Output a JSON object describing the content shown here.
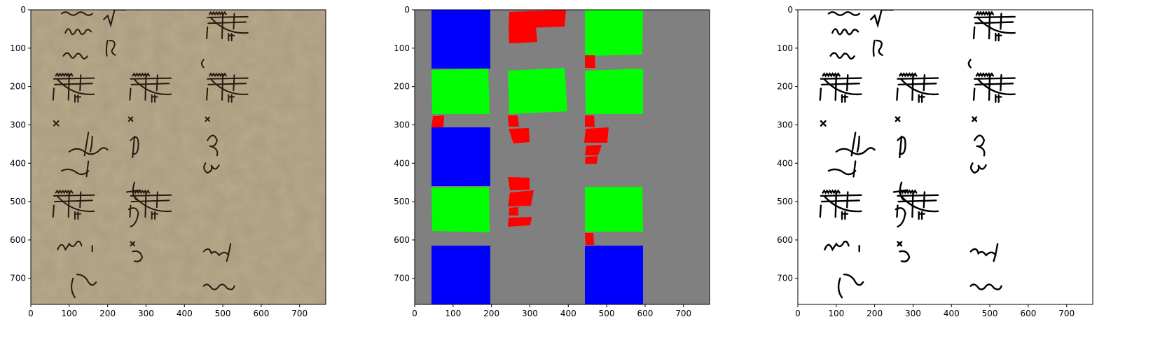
{
  "figure": {
    "panels": [
      {
        "name": "scan",
        "kind": "manuscript-photo",
        "x_ticks": [
          "0",
          "100",
          "200",
          "300",
          "400",
          "500",
          "600",
          "700"
        ],
        "y_ticks": [
          "0",
          "100",
          "200",
          "300",
          "400",
          "500",
          "600",
          "700"
        ]
      },
      {
        "name": "segmentation-mask",
        "kind": "region-mask",
        "x_ticks": [
          "0",
          "100",
          "200",
          "300",
          "400",
          "500",
          "600",
          "700"
        ],
        "y_ticks": [
          "0",
          "100",
          "200",
          "300",
          "400",
          "500",
          "600",
          "700"
        ],
        "colors": {
          "background": "#808080",
          "blue": "#0000ff",
          "green": "#00ff00",
          "red": "#ff0000"
        }
      },
      {
        "name": "binarized",
        "kind": "binary-image",
        "x_ticks": [
          "0",
          "100",
          "200",
          "300",
          "400",
          "500",
          "600",
          "700"
        ],
        "y_ticks": [
          "0",
          "100",
          "200",
          "300",
          "400",
          "500",
          "600",
          "700"
        ]
      }
    ]
  }
}
